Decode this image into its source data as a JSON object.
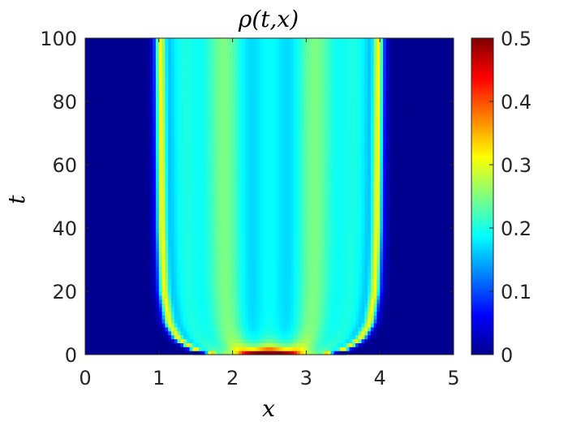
{
  "chart_data": {
    "type": "heatmap",
    "title": "ρ(t,x)",
    "xlabel": "x",
    "ylabel": "t",
    "xlim": [
      0,
      5
    ],
    "ylim": [
      0,
      100
    ],
    "clim": [
      0,
      0.5
    ],
    "colormap": "jet",
    "xticks": [
      "0",
      "1",
      "2",
      "3",
      "4",
      "5"
    ],
    "yticks": [
      "0",
      "20",
      "40",
      "60",
      "80",
      "100"
    ],
    "colorbar_ticks": [
      "0",
      "0.1",
      "0.2",
      "0.3",
      "0.4",
      "0.5"
    ],
    "support_edges": [
      {
        "t": 0,
        "x_left": 1.8,
        "x_right": 3.2
      },
      {
        "t": 2,
        "x_left": 1.45,
        "x_right": 3.55
      },
      {
        "t": 5,
        "x_left": 1.25,
        "x_right": 3.75
      },
      {
        "t": 10,
        "x_left": 1.12,
        "x_right": 3.88
      },
      {
        "t": 20,
        "x_left": 1.05,
        "x_right": 3.95
      },
      {
        "t": 40,
        "x_left": 1.02,
        "x_right": 3.98
      },
      {
        "t": 100,
        "x_left": 1.0,
        "x_right": 4.0
      }
    ],
    "peak_density_edge": 0.42,
    "interior_density": 0.2,
    "background_density": 0
  }
}
